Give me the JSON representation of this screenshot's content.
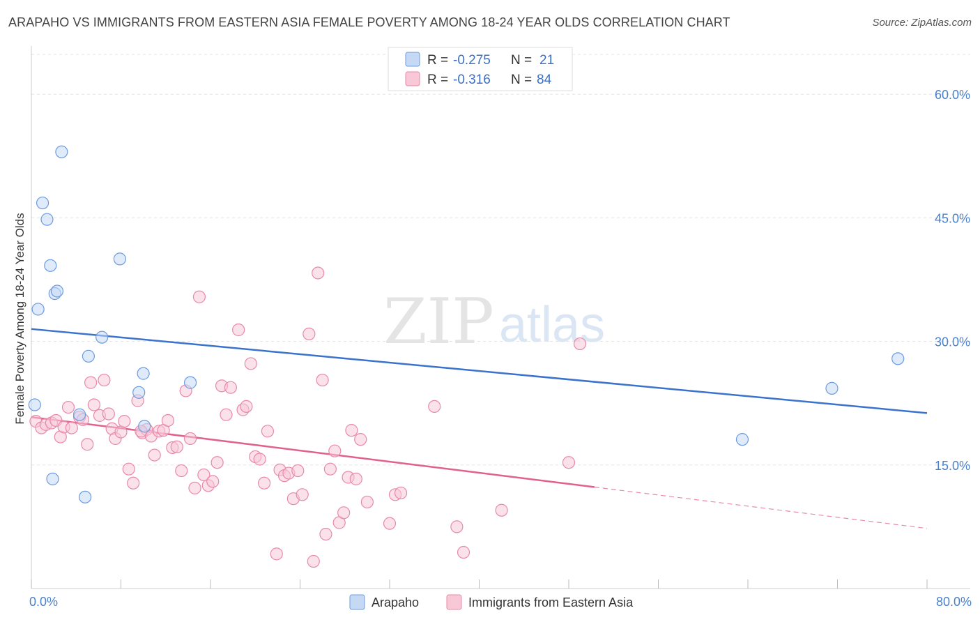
{
  "title": "ARAPAHO VS IMMIGRANTS FROM EASTERN ASIA FEMALE POVERTY AMONG 18-24 YEAR OLDS CORRELATION CHART",
  "source": "Source: ZipAtlas.com",
  "watermark": {
    "part1": "ZIP",
    "part2": "atlas"
  },
  "legend": {
    "rows": [
      {
        "r_label": "R =",
        "r_value": "-0.275",
        "n_label": "N =",
        "n_value": "21"
      },
      {
        "r_label": "R =",
        "r_value": "-0.316",
        "n_label": "N =",
        "n_value": "84"
      }
    ]
  },
  "chart_data": {
    "type": "scatter",
    "ylabel": "Female Poverty Among 18-24 Year Olds",
    "xlim": [
      0,
      80
    ],
    "ylim": [
      0,
      65
    ],
    "x_tick_labels": [
      "0.0%",
      "80.0%"
    ],
    "y_ticks": [
      15,
      30,
      45,
      60
    ],
    "y_tick_labels": [
      "15.0%",
      "30.0%",
      "45.0%",
      "60.0%"
    ],
    "grid": true,
    "legend_position": "top-center",
    "series": [
      {
        "name": "Arapaho",
        "color": "#6b9be0",
        "fill": "#c5d9f5",
        "r": -0.275,
        "n": 21,
        "trend": {
          "x0": 0,
          "y0": 31.5,
          "x1": 80,
          "y1": 21.3,
          "dashed_from": null
        },
        "points": [
          [
            0.3,
            22.3
          ],
          [
            2.7,
            53.0
          ],
          [
            1.0,
            46.8
          ],
          [
            1.4,
            44.8
          ],
          [
            1.7,
            39.2
          ],
          [
            7.9,
            40.0
          ],
          [
            2.1,
            35.8
          ],
          [
            2.3,
            36.1
          ],
          [
            0.6,
            33.9
          ],
          [
            6.3,
            30.5
          ],
          [
            5.1,
            28.2
          ],
          [
            10.0,
            26.1
          ],
          [
            14.2,
            25.0
          ],
          [
            9.6,
            23.8
          ],
          [
            4.3,
            21.1
          ],
          [
            10.1,
            19.7
          ],
          [
            1.9,
            13.3
          ],
          [
            4.8,
            11.1
          ],
          [
            63.5,
            18.1
          ],
          [
            71.5,
            24.3
          ],
          [
            77.4,
            27.9
          ]
        ]
      },
      {
        "name": "Immigrants from Eastern Asia",
        "color": "#e889a8",
        "fill": "#f8c8d7",
        "r": -0.316,
        "n": 84,
        "trend": {
          "x0": 0,
          "y0": 20.8,
          "x1": 80,
          "y1": 7.3,
          "dashed_from": 50.3
        },
        "points": [
          [
            0.4,
            20.3
          ],
          [
            0.9,
            19.5
          ],
          [
            1.3,
            19.9
          ],
          [
            1.8,
            20.1
          ],
          [
            2.2,
            20.4
          ],
          [
            2.6,
            18.4
          ],
          [
            2.9,
            19.6
          ],
          [
            3.3,
            22.0
          ],
          [
            3.6,
            19.5
          ],
          [
            4.3,
            20.8
          ],
          [
            4.6,
            20.5
          ],
          [
            5.0,
            17.5
          ],
          [
            5.3,
            25.0
          ],
          [
            5.6,
            22.3
          ],
          [
            6.1,
            21.0
          ],
          [
            6.5,
            25.3
          ],
          [
            6.9,
            21.2
          ],
          [
            7.2,
            19.4
          ],
          [
            7.5,
            18.2
          ],
          [
            8.0,
            19.0
          ],
          [
            8.3,
            20.3
          ],
          [
            8.7,
            14.5
          ],
          [
            9.1,
            12.8
          ],
          [
            9.5,
            22.8
          ],
          [
            9.9,
            18.9
          ],
          [
            10.3,
            19.3
          ],
          [
            10.7,
            18.5
          ],
          [
            11.0,
            16.2
          ],
          [
            11.4,
            19.1
          ],
          [
            11.8,
            19.2
          ],
          [
            12.2,
            20.4
          ],
          [
            12.6,
            17.1
          ],
          [
            13.0,
            17.2
          ],
          [
            13.4,
            14.3
          ],
          [
            13.8,
            24.0
          ],
          [
            14.2,
            18.2
          ],
          [
            14.6,
            12.2
          ],
          [
            15.0,
            35.4
          ],
          [
            15.4,
            13.8
          ],
          [
            15.8,
            12.5
          ],
          [
            16.2,
            13.0
          ],
          [
            16.6,
            15.3
          ],
          [
            17.0,
            24.6
          ],
          [
            17.4,
            21.1
          ],
          [
            17.8,
            24.4
          ],
          [
            18.5,
            31.4
          ],
          [
            18.9,
            21.7
          ],
          [
            19.2,
            22.1
          ],
          [
            19.6,
            27.3
          ],
          [
            20.0,
            16.0
          ],
          [
            20.4,
            15.7
          ],
          [
            20.8,
            12.8
          ],
          [
            21.1,
            19.1
          ],
          [
            21.9,
            4.2
          ],
          [
            22.2,
            14.4
          ],
          [
            22.6,
            13.7
          ],
          [
            23.0,
            14.0
          ],
          [
            23.4,
            10.9
          ],
          [
            23.8,
            14.3
          ],
          [
            24.2,
            11.4
          ],
          [
            24.8,
            30.9
          ],
          [
            25.2,
            3.3
          ],
          [
            25.6,
            38.3
          ],
          [
            26.0,
            25.3
          ],
          [
            26.3,
            6.6
          ],
          [
            26.7,
            14.5
          ],
          [
            27.1,
            16.7
          ],
          [
            27.5,
            8.0
          ],
          [
            27.9,
            9.2
          ],
          [
            28.3,
            13.5
          ],
          [
            28.6,
            19.2
          ],
          [
            29.0,
            13.3
          ],
          [
            29.4,
            18.1
          ],
          [
            30.0,
            10.5
          ],
          [
            32.0,
            7.9
          ],
          [
            32.5,
            11.4
          ],
          [
            33.0,
            11.6
          ],
          [
            36.0,
            22.1
          ],
          [
            38.0,
            7.5
          ],
          [
            38.6,
            4.4
          ],
          [
            42.0,
            9.5
          ],
          [
            48.0,
            15.3
          ],
          [
            49.0,
            29.7
          ],
          [
            9.8,
            19.1
          ]
        ]
      }
    ]
  }
}
